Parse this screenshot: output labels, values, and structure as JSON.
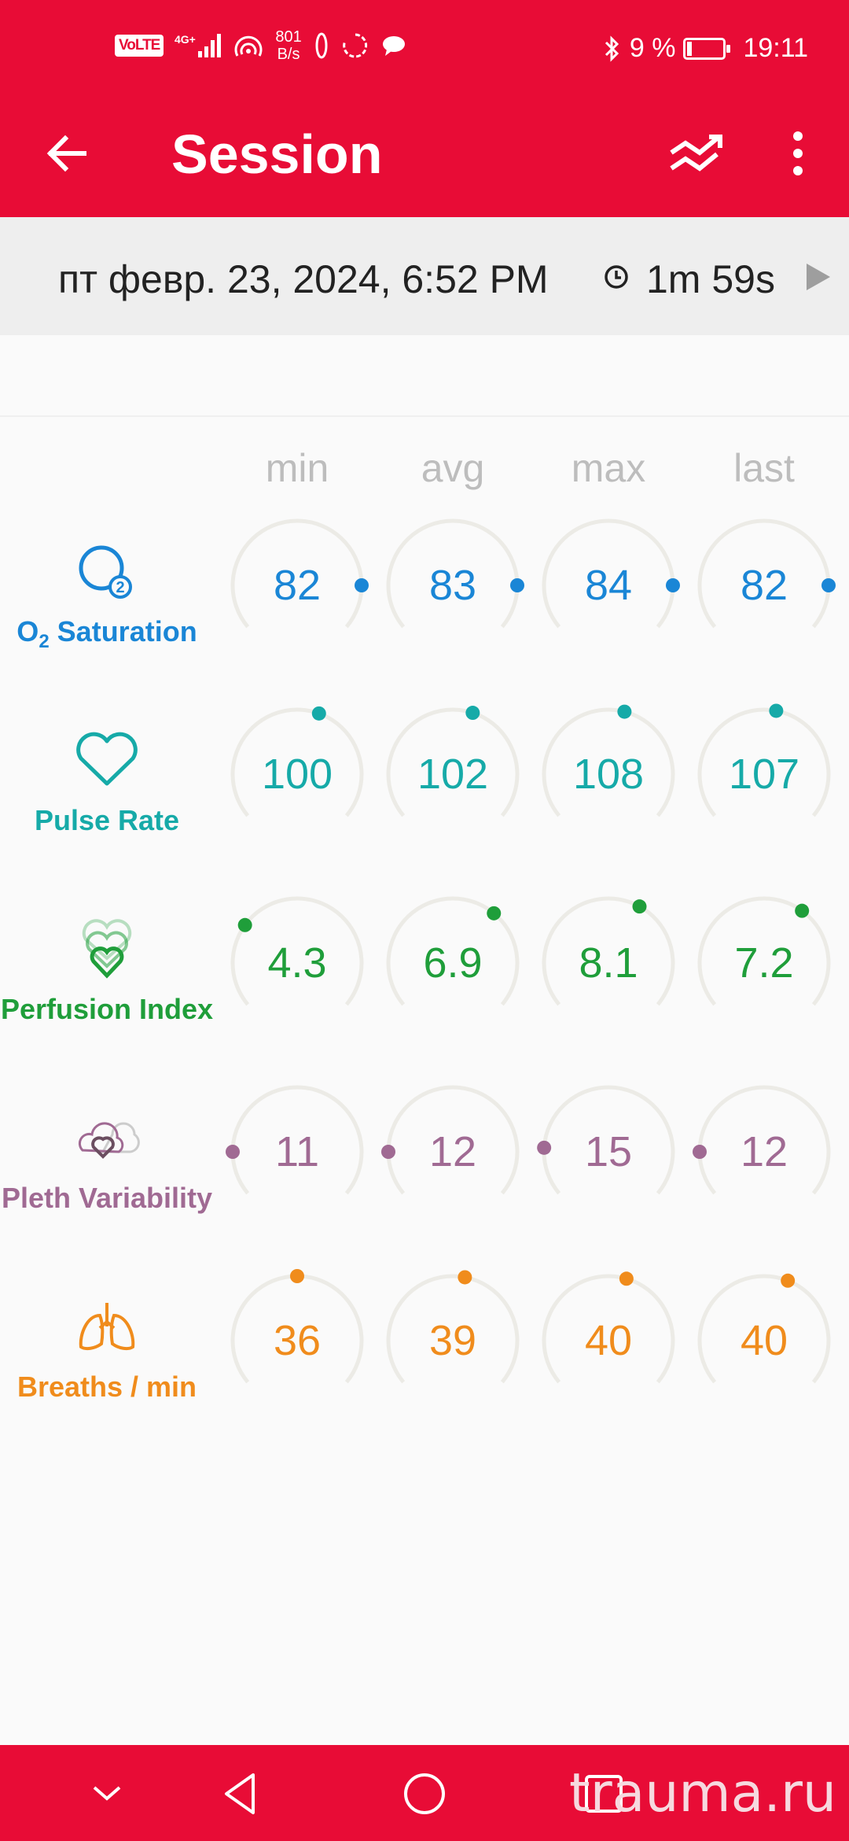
{
  "status_bar": {
    "volte": "VoLTE",
    "net_speed_value": "801",
    "net_speed_unit": "B/s",
    "battery_text": "9 %",
    "time": "19:11"
  },
  "toolbar": {
    "title": "Session"
  },
  "session": {
    "datetime": "пт февр. 23, 2024, 6:52 PM",
    "duration": "1m 59s"
  },
  "columns": [
    "min",
    "avg",
    "max",
    "last"
  ],
  "metrics": [
    {
      "label_prefix": "O",
      "label_sub": "2",
      "label": " Saturation",
      "color": "#1a86d6",
      "icon": "o2-icon",
      "values": [
        "82",
        "83",
        "84",
        "82"
      ],
      "levels": [
        0.5,
        0.5,
        0.5,
        0.5
      ]
    },
    {
      "label": "Pulse Rate",
      "color": "#16aaa8",
      "icon": "heart-icon",
      "values": [
        "100",
        "102",
        "108",
        "107"
      ],
      "levels": [
        0.11,
        0.1,
        0.08,
        0.06
      ]
    },
    {
      "label": "Perfusion Index",
      "color": "#1f9e3a",
      "icon": "perfusion-heart-icon",
      "values": [
        "4.3",
        "6.9",
        "8.1",
        "7.2"
      ],
      "levels": [
        -0.3,
        0.22,
        0.16,
        0.2
      ]
    },
    {
      "label": "Pleth Variability",
      "color": "#a06a93",
      "icon": "pleth-hearts-icon",
      "values": [
        "11",
        "12",
        "15",
        "12"
      ],
      "levels": [
        -0.5,
        -0.5,
        -0.48,
        -0.5
      ]
    },
    {
      "label": "Breaths / min",
      "color": "#f08c1c",
      "icon": "lungs-icon",
      "values": [
        "36",
        "39",
        "40",
        "40"
      ],
      "levels": [
        0.0,
        0.06,
        0.09,
        0.12
      ]
    }
  ],
  "watermark": "trauma.ru"
}
